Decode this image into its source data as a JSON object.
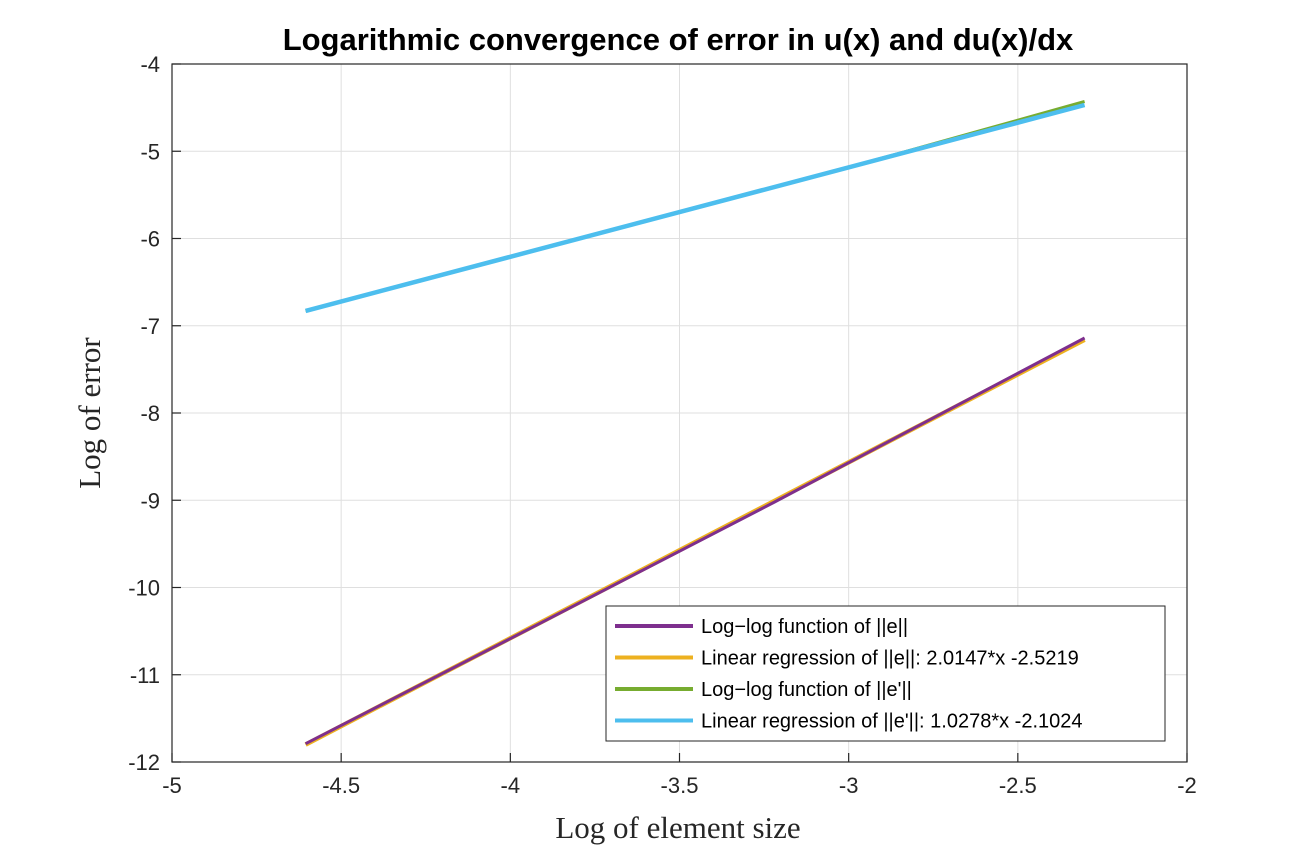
{
  "chart_data": {
    "type": "line",
    "title": "Logarithmic convergence of error in u(x) and du(x)/dx",
    "xlabel": "Log of element size",
    "ylabel": "Log of error",
    "xlim": [
      -5,
      -2
    ],
    "ylim": [
      -12,
      -4
    ],
    "xticks": [
      "-5",
      "-4.5",
      "-4",
      "-3.5",
      "-3",
      "-2.5",
      "-2"
    ],
    "yticks": [
      "-4",
      "-5",
      "-6",
      "-7",
      "-8",
      "-9",
      "-10",
      "-11",
      "-12"
    ],
    "grid": true,
    "legend_position": "bottom-right",
    "series": [
      {
        "name": "Log−log function of ||e||",
        "color": "#7E2F8E",
        "x": [
          -4.6052,
          -3.912,
          -3.2189,
          -2.9957,
          -2.3026
        ],
        "y": [
          -11.79,
          -10.41,
          -9.02,
          -8.56,
          -7.14
        ]
      },
      {
        "name": "Linear regression of ||e||: 2.0147*x -2.5219",
        "color": "#EDB120",
        "x": [
          -4.6052,
          -2.3026
        ],
        "y": [
          -11.8,
          -7.16
        ]
      },
      {
        "name": "Log−log function of ||e'||",
        "color": "#77AC30",
        "x": [
          -4.6052,
          -3.912,
          -3.2189,
          -2.9957,
          -2.3026
        ],
        "y": [
          -6.83,
          -6.12,
          -5.41,
          -5.18,
          -4.43
        ]
      },
      {
        "name": "Linear regression of ||e'||: 1.0278*x -2.1024",
        "color": "#4DBEEE",
        "x": [
          -4.6052,
          -2.3026
        ],
        "y": [
          -6.83,
          -4.47
        ]
      }
    ]
  }
}
